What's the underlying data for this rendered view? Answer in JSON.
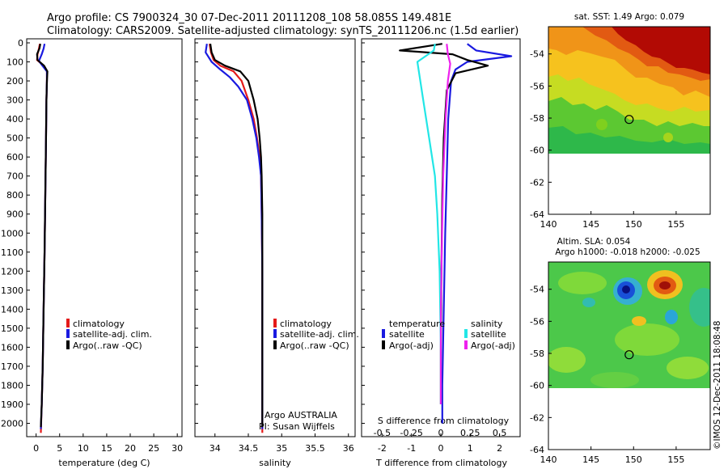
{
  "header": {
    "line1": "Argo profile: CS 7900324_30 07-Dec-2011 20111208_108 58.085S 149.481E",
    "line2": "Climatology: CARS2009. Satellite-adjusted climatology: synTS_20111206.nc (1.5d earlier)"
  },
  "colors": {
    "climatology": "#e41a1a",
    "satellite": "#1a1ae0",
    "argo": "#000000",
    "sal_satellite": "#22e6e6",
    "sal_argo": "#ee22ee"
  },
  "depth_ticks": [
    "0",
    "100",
    "200",
    "300",
    "400",
    "500",
    "600",
    "700",
    "800",
    "900",
    "1000",
    "1100",
    "1200",
    "1300",
    "1400",
    "1500",
    "1600",
    "1700",
    "1800",
    "1900",
    "2000"
  ],
  "chart_data": [
    {
      "id": "temperature",
      "type": "line",
      "xlabel": "temperature (deg C)",
      "xlim": [
        -2,
        31
      ],
      "ylim": [
        0,
        2070
      ],
      "x_ticks": [
        "0",
        "5",
        "10",
        "15",
        "20",
        "25",
        "30"
      ],
      "legend": {
        "placement": "lower-center",
        "entries": [
          "climatology",
          "satellite-adj. clim.",
          "Argo(..raw -QC)"
        ]
      },
      "series": [
        {
          "name": "climatology",
          "color_key": "climatology",
          "x": [
            0.8,
            0.6,
            0.3,
            0.2,
            1.6,
            2.3,
            2.3,
            2.2,
            2.1,
            2.0,
            1.9,
            1.8,
            1.6,
            1.4,
            1.2,
            1.0
          ],
          "depth": [
            5,
            30,
            60,
            90,
            120,
            150,
            200,
            300,
            500,
            700,
            900,
            1100,
            1400,
            1700,
            1900,
            2050
          ]
        },
        {
          "name": "satellite-adj. clim.",
          "color_key": "satellite",
          "x": [
            1.8,
            1.6,
            1.2,
            0.6,
            1.5,
            2.3,
            2.3,
            2.2,
            2.1,
            2.0,
            1.9,
            1.8,
            1.6,
            1.4,
            1.2,
            1.0
          ],
          "depth": [
            5,
            30,
            60,
            95,
            125,
            150,
            200,
            300,
            500,
            700,
            900,
            1100,
            1400,
            1700,
            1900,
            2030
          ]
        },
        {
          "name": "Argo(..raw -QC)",
          "color_key": "argo",
          "x": [
            0.9,
            0.7,
            0.2,
            0.3,
            1.7,
            2.4,
            2.3,
            2.2,
            2.1,
            2.0,
            1.9,
            1.8,
            1.6,
            1.4,
            1.2,
            1.0
          ],
          "depth": [
            5,
            30,
            60,
            90,
            120,
            150,
            200,
            300,
            500,
            700,
            900,
            1100,
            1400,
            1700,
            1900,
            2020
          ]
        }
      ]
    },
    {
      "id": "salinity",
      "type": "line",
      "xlabel": "salinity",
      "xlim": [
        33.7,
        36.1
      ],
      "ylim": [
        0,
        2070
      ],
      "x_ticks": [
        "34",
        "34.5",
        "35",
        "35.5",
        "36"
      ],
      "legend": {
        "placement": "lower-center",
        "entries": [
          "climatology",
          "satellite-adj. clim.",
          "Argo(..raw -QC)"
        ]
      },
      "annotations": [
        "Argo AUSTRALIA",
        "PI: Susan Wijffels"
      ],
      "series": [
        {
          "name": "climatology",
          "color_key": "climatology",
          "x": [
            33.92,
            33.94,
            33.98,
            34.08,
            34.28,
            34.4,
            34.5,
            34.58,
            34.63,
            34.67,
            34.69,
            34.7,
            34.71,
            34.71,
            34.71,
            34.71
          ],
          "depth": [
            5,
            50,
            90,
            120,
            150,
            200,
            300,
            400,
            500,
            600,
            700,
            900,
            1200,
            1500,
            1800,
            2050
          ]
        },
        {
          "name": "satellite-adj. clim.",
          "color_key": "satellite",
          "x": [
            33.88,
            33.86,
            33.95,
            34.08,
            34.22,
            34.35,
            34.48,
            34.56,
            34.62,
            34.66,
            34.69,
            34.7,
            34.71,
            34.71,
            34.71,
            34.71
          ],
          "depth": [
            5,
            50,
            100,
            140,
            180,
            230,
            300,
            400,
            500,
            600,
            700,
            900,
            1200,
            1500,
            1800,
            2030
          ]
        },
        {
          "name": "Argo(..raw -QC)",
          "color_key": "argo",
          "x": [
            33.93,
            33.95,
            34.0,
            34.15,
            34.38,
            34.5,
            34.58,
            34.64,
            34.67,
            34.69,
            34.7,
            34.71,
            34.71,
            34.71,
            34.71,
            34.71
          ],
          "depth": [
            5,
            50,
            90,
            120,
            150,
            200,
            300,
            400,
            500,
            600,
            700,
            900,
            1200,
            1500,
            1800,
            2020
          ]
        }
      ]
    },
    {
      "id": "difference",
      "type": "line",
      "xlabel": "T difference from climatology",
      "x2label": "S difference from climatology",
      "xlim": [
        -2.7,
        2.7
      ],
      "x2lim": [
        -0.675,
        0.675
      ],
      "ylim": [
        0,
        2070
      ],
      "x_ticks": [
        "-2",
        "-1",
        "0",
        "1",
        "2"
      ],
      "x2_ticks": [
        "-0.5",
        "-0.25",
        "0",
        "0.25",
        "0.5"
      ],
      "legend": {
        "placement": "lower-center",
        "group_titles": [
          "temperature",
          "salinity"
        ],
        "entries": [
          "satellite",
          "Argo(-adj)",
          "satellite",
          "Argo(-adj)"
        ]
      },
      "series": [
        {
          "name": "temperature satellite",
          "color_key": "satellite",
          "x": [
            0.9,
            1.2,
            2.4,
            0.9,
            0.5,
            0.35,
            0.25,
            0.2,
            0.15,
            0.1,
            0.05,
            0.05
          ],
          "depth": [
            5,
            40,
            70,
            100,
            140,
            200,
            400,
            700,
            1000,
            1400,
            1800,
            2000
          ]
        },
        {
          "name": "temperature Argo(-adj)",
          "color_key": "argo",
          "x": [
            0.05,
            -1.4,
            0.4,
            0.9,
            1.6,
            0.5,
            0.2,
            0.1,
            0.05,
            0.02,
            0.0,
            0.0
          ],
          "depth": [
            5,
            40,
            60,
            90,
            120,
            160,
            250,
            500,
            800,
            1200,
            1600,
            1900
          ]
        },
        {
          "name": "salinity satellite",
          "color_key": "sal_satellite",
          "x": [
            -0.05,
            -0.06,
            -0.2,
            -0.15,
            -0.1,
            -0.05,
            -0.03,
            -0.01,
            0.0,
            0.0
          ],
          "depth": [
            5,
            40,
            100,
            300,
            500,
            700,
            900,
            1200,
            1600,
            1900
          ]
        },
        {
          "name": "salinity Argo(-adj)",
          "color_key": "sal_argo",
          "x": [
            0.05,
            0.06,
            0.08,
            0.06,
            0.04,
            0.02,
            0.01,
            0.0,
            0.0
          ],
          "depth": [
            5,
            60,
            110,
            200,
            400,
            700,
            1000,
            1400,
            1900
          ]
        }
      ]
    },
    {
      "id": "sst_map",
      "type": "heatmap",
      "title": "sat. SST: 1.49 Argo: 0.079",
      "x_ticks": [
        "140",
        "145",
        "150",
        "155"
      ],
      "y_ticks": [
        "-54",
        "-56",
        "-58",
        "-60",
        "-62",
        "-64"
      ],
      "xlim": [
        140,
        159
      ],
      "ylim": [
        -64,
        -52.3
      ],
      "data_ylim": [
        -60.1,
        -52.3
      ],
      "marker": {
        "lon": 149.481,
        "lat": -58.085
      }
    },
    {
      "id": "sla_map",
      "type": "heatmap",
      "title": "Altim. SLA: 0.054",
      "subtitle": "Argo h1000: -0.018 h2000: -0.025",
      "x_ticks": [
        "140",
        "145",
        "150",
        "155"
      ],
      "y_ticks": [
        "-54",
        "-56",
        "-58",
        "-60",
        "-62",
        "-64"
      ],
      "xlim": [
        140,
        159
      ],
      "ylim": [
        -64,
        -52.3
      ],
      "data_ylim": [
        -60.1,
        -52.3
      ],
      "marker": {
        "lon": 149.481,
        "lat": -58.085
      }
    }
  ],
  "footer": {
    "credit": "©IMOS 12-Dec-2011 18:08:48"
  }
}
